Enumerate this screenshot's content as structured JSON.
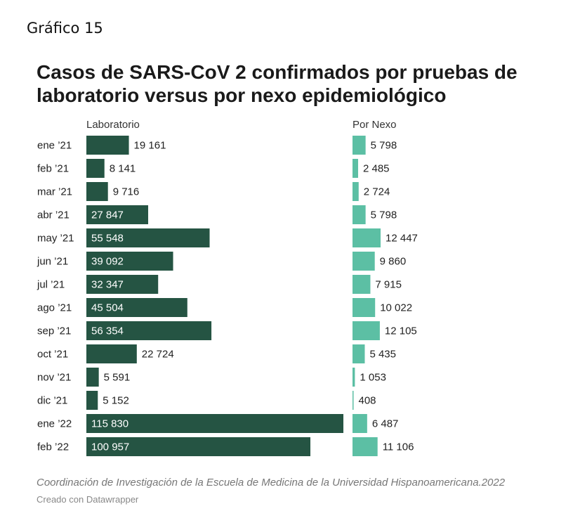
{
  "figure_label": "Gráfico 15",
  "title": "Casos de SARS-CoV 2 confirmados por pruebas de laboratorio versus por nexo epidemiológico",
  "footer": {
    "source": "Coordinación de Investigación de la Escuela de Medicina de la Universidad Hispanoamericana.2022",
    "credit": "Creado con Datawrapper"
  },
  "colors": {
    "laboratorio": "#255443",
    "nexo": "#5cbfa4"
  },
  "chart_data": {
    "type": "bar",
    "orientation": "horizontal",
    "categories": [
      "ene ’21",
      "feb ’21",
      "mar ’21",
      "abr ’21",
      "may ’21",
      "jun ’21",
      "jul ’21",
      "ago ’21",
      "sep ’21",
      "oct ’21",
      "nov ’21",
      "dic ’21",
      "ene ’22",
      "feb ’22"
    ],
    "series": [
      {
        "name": "Laboratorio",
        "values": [
          19161,
          8141,
          9716,
          27847,
          55548,
          39092,
          32347,
          45504,
          56354,
          22724,
          5591,
          5152,
          115830,
          100957
        ],
        "labels": [
          "19 161",
          "8 141",
          "9 716",
          "27 847",
          "55 548",
          "39 092",
          "32 347",
          "45 504",
          "56 354",
          "22 724",
          "5 591",
          "5 152",
          "115 830",
          "100 957"
        ]
      },
      {
        "name": "Por Nexo",
        "values": [
          5798,
          2485,
          2724,
          5798,
          12447,
          9860,
          7915,
          10022,
          12105,
          5435,
          1053,
          408,
          6487,
          11106
        ],
        "labels": [
          "5 798",
          "2 485",
          "2 724",
          "5 798",
          "12 447",
          "9 860",
          "7 915",
          "10 022",
          "12 105",
          "5 435",
          "1 053",
          "408",
          "6 487",
          "11 106"
        ]
      }
    ],
    "grid": false,
    "legend": "column headers"
  }
}
